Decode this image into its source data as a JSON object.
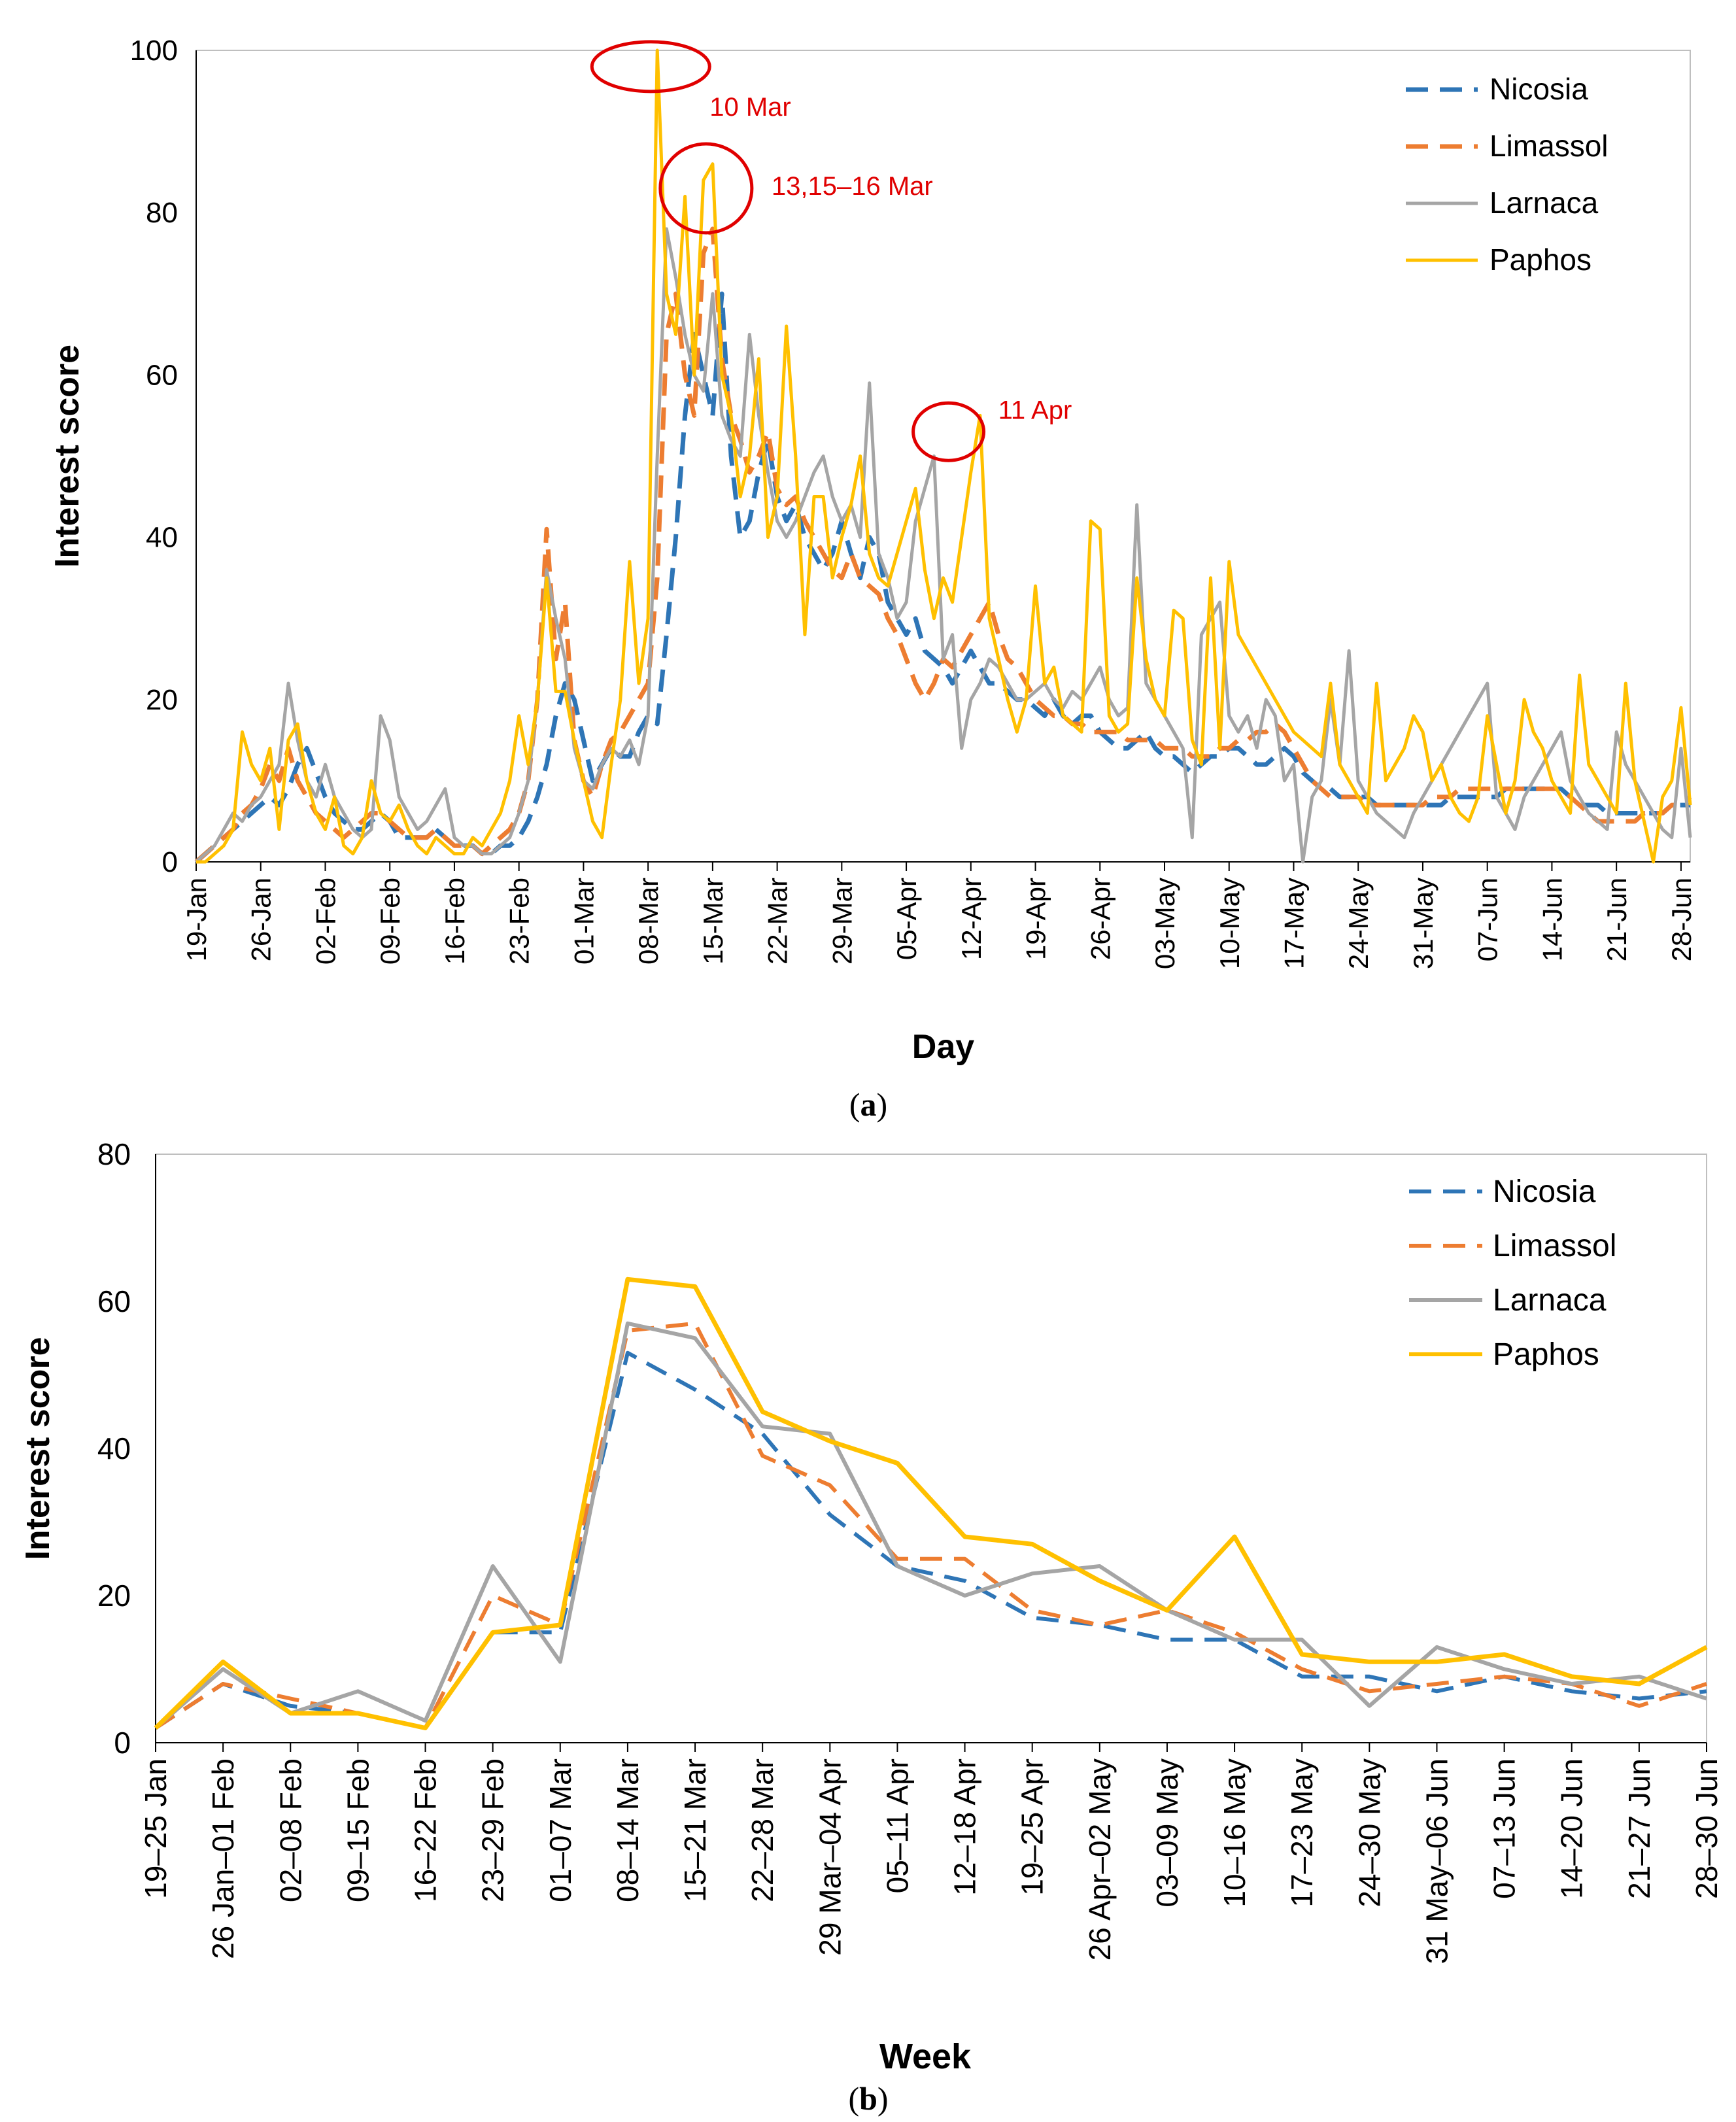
{
  "figure": {
    "caption_a_open": "(",
    "caption_a_letter": "a",
    "caption_a_close": ")",
    "caption_b_open": "(",
    "caption_b_letter": "b",
    "caption_b_close": ")"
  },
  "colors": {
    "Nicosia": "#2E75B6",
    "Limassol": "#ED7D31",
    "Larnaca": "#A5A5A5",
    "Paphos": "#FFC000",
    "annotation": "#E00000",
    "axis": "#000000",
    "gridbox": "#BFBFBF"
  },
  "chart_data": [
    {
      "type": "line",
      "title": "",
      "xlabel": "Day",
      "ylabel": "Interest score",
      "ylim": [
        0,
        100
      ],
      "yticks": [
        0,
        20,
        40,
        60,
        80,
        100
      ],
      "x_count": 163,
      "tick_every": 7,
      "tick_labels": [
        "19-Jan",
        "26-Jan",
        "02-Feb",
        "09-Feb",
        "16-Feb",
        "23-Feb",
        "01-Mar",
        "08-Mar",
        "15-Mar",
        "22-Mar",
        "29-Mar",
        "05-Apr",
        "12-Apr",
        "19-Apr",
        "26-Apr",
        "03-May",
        "10-May",
        "17-May",
        "24-May",
        "31-May",
        "07-Jun",
        "14-Jun",
        "21-Jun",
        "28-Jun"
      ],
      "legend": [
        "Nicosia",
        "Limassol",
        "Larnaca",
        "Paphos"
      ],
      "legend_position": "top-right",
      "annotations": [
        {
          "text": "10 Mar",
          "x_index": 50,
          "y": 98
        },
        {
          "text": "13,15–16 Mar",
          "x_index": 56,
          "y": 83
        },
        {
          "text": "11 Apr",
          "x_index": 82,
          "y": 53
        }
      ],
      "series": [
        {
          "name": "Nicosia",
          "style": "dashed",
          "values": [
            0,
            1,
            2,
            3,
            4,
            5,
            6,
            7,
            8,
            7,
            9,
            12,
            14,
            11,
            8,
            6,
            5,
            4,
            4,
            5,
            6,
            5,
            3,
            3,
            3,
            3,
            4,
            3,
            2,
            2,
            2,
            1,
            1,
            2,
            2,
            3,
            5,
            8,
            12,
            18,
            22,
            20,
            15,
            10,
            12,
            14,
            13,
            13,
            16,
            18,
            17,
            28,
            40,
            55,
            65,
            60,
            55,
            70,
            50,
            40,
            42,
            48,
            52,
            45,
            42,
            44,
            40,
            38,
            36,
            38,
            42,
            38,
            35,
            40,
            38,
            32,
            30,
            28,
            30,
            26,
            25,
            24,
            22,
            24,
            26,
            24,
            22,
            22,
            21,
            20,
            20,
            19,
            18,
            20,
            18,
            17,
            18,
            18,
            16,
            15,
            14,
            14,
            15,
            16,
            14,
            13,
            13,
            12,
            11,
            12,
            13,
            13,
            14,
            14,
            13,
            12,
            12,
            13,
            14,
            13,
            11,
            10,
            9,
            9,
            8,
            8,
            8,
            8,
            7,
            7,
            7,
            7,
            7,
            7,
            7,
            7,
            8,
            8,
            8,
            8,
            8,
            8,
            9,
            9,
            9,
            9,
            9,
            9,
            9,
            8,
            7,
            7,
            7,
            6,
            6,
            6,
            6,
            6,
            6,
            6,
            7,
            7,
            7
          ]
        },
        {
          "name": "Limassol",
          "style": "dashed",
          "values": [
            0,
            1,
            2,
            3,
            4,
            6,
            7,
            9,
            12,
            10,
            14,
            10,
            8,
            6,
            5,
            4,
            3,
            4,
            5,
            6,
            6,
            5,
            4,
            3,
            3,
            3,
            4,
            3,
            2,
            2,
            2,
            1,
            2,
            3,
            4,
            6,
            10,
            20,
            41,
            25,
            32,
            15,
            10,
            8,
            12,
            15,
            16,
            18,
            20,
            22,
            35,
            65,
            70,
            60,
            55,
            75,
            78,
            62,
            55,
            52,
            48,
            50,
            53,
            46,
            44,
            45,
            42,
            40,
            38,
            36,
            35,
            38,
            35,
            34,
            33,
            30,
            28,
            25,
            22,
            20,
            22,
            25,
            24,
            26,
            28,
            30,
            32,
            28,
            25,
            24,
            22,
            20,
            19,
            18,
            18,
            17,
            17,
            16,
            16,
            16,
            16,
            15,
            15,
            15,
            15,
            14,
            14,
            14,
            13,
            13,
            13,
            14,
            14,
            15,
            15,
            16,
            16,
            17,
            16,
            14,
            12,
            10,
            9,
            8,
            8,
            8,
            8,
            7,
            7,
            7,
            7,
            7,
            7,
            7,
            8,
            8,
            8,
            9,
            9,
            9,
            9,
            9,
            9,
            9,
            9,
            9,
            9,
            9,
            9,
            8,
            7,
            6,
            5,
            5,
            5,
            5,
            5,
            6,
            6,
            6,
            7,
            7,
            8
          ]
        },
        {
          "name": "Larnaca",
          "style": "solid",
          "values": [
            0,
            1,
            2,
            4,
            6,
            5,
            7,
            8,
            10,
            12,
            22,
            15,
            10,
            8,
            12,
            8,
            6,
            4,
            3,
            4,
            18,
            15,
            8,
            6,
            4,
            5,
            7,
            9,
            3,
            2,
            2,
            1,
            1,
            2,
            3,
            6,
            10,
            20,
            36,
            30,
            25,
            14,
            10,
            9,
            12,
            14,
            13,
            15,
            12,
            18,
            50,
            78,
            72,
            65,
            60,
            58,
            70,
            55,
            52,
            50,
            65,
            55,
            48,
            42,
            40,
            42,
            45,
            48,
            50,
            45,
            42,
            44,
            40,
            59,
            38,
            35,
            30,
            32,
            42,
            46,
            50,
            25,
            28,
            14,
            20,
            22,
            25,
            24,
            22,
            20,
            20,
            21,
            22,
            20,
            19,
            21,
            20,
            22,
            24,
            20,
            18,
            19,
            44,
            22,
            20,
            18,
            16,
            14,
            3,
            28,
            30,
            32,
            18,
            16,
            18,
            14,
            20,
            18,
            10,
            12,
            0,
            8,
            10,
            20,
            12,
            26,
            10,
            8,
            6,
            5,
            4,
            3,
            6,
            8,
            10,
            12,
            14,
            16,
            18,
            20,
            22,
            8,
            6,
            4,
            8,
            10,
            12,
            14,
            16,
            10,
            8,
            6,
            5,
            4,
            16,
            12,
            10,
            8,
            6,
            4,
            3,
            14,
            3
          ]
        },
        {
          "name": "Paphos",
          "style": "solid",
          "values": [
            0,
            0,
            1,
            2,
            4,
            16,
            12,
            10,
            14,
            4,
            15,
            17,
            10,
            6,
            4,
            8,
            2,
            1,
            3,
            10,
            6,
            5,
            7,
            4,
            2,
            1,
            3,
            2,
            1,
            1,
            3,
            2,
            4,
            6,
            10,
            18,
            12,
            20,
            35,
            21,
            21,
            15,
            10,
            5,
            3,
            12,
            20,
            37,
            22,
            30,
            100,
            70,
            65,
            82,
            60,
            84,
            86,
            60,
            55,
            45,
            50,
            62,
            40,
            45,
            66,
            50,
            28,
            45,
            45,
            35,
            40,
            44,
            50,
            38,
            35,
            34,
            38,
            42,
            46,
            36,
            30,
            35,
            32,
            40,
            48,
            55,
            30,
            25,
            20,
            16,
            20,
            34,
            22,
            24,
            18,
            17,
            16,
            42,
            41,
            18,
            16,
            17,
            35,
            25,
            20,
            18,
            31,
            30,
            15,
            12,
            35,
            14,
            37,
            28,
            26,
            24,
            22,
            20,
            18,
            16,
            15,
            14,
            13,
            22,
            12,
            10,
            8,
            6,
            22,
            10,
            12,
            14,
            18,
            16,
            10,
            12,
            8,
            6,
            5,
            8,
            18,
            12,
            6,
            10,
            20,
            16,
            14,
            10,
            8,
            6,
            23,
            12,
            10,
            8,
            6,
            22,
            10,
            5,
            0,
            8,
            10,
            19,
            7
          ]
        }
      ]
    },
    {
      "type": "line",
      "title": "",
      "xlabel": "Week",
      "ylabel": "Interest score",
      "ylim": [
        0,
        80
      ],
      "yticks": [
        0,
        20,
        40,
        60,
        80
      ],
      "categories": [
        "19–25 Jan",
        "26 Jan–01 Feb",
        "02–08 Feb",
        "09–15 Feb",
        "16–22 Feb",
        "23–29 Feb",
        "01–07 Mar",
        "08–14 Mar",
        "15–21 Mar",
        "22–28 Mar",
        "29 Mar–04 Apr",
        "05–11 Apr",
        "12–18 Apr",
        "19–25 Apr",
        "26 Apr–02 May",
        "03–09 May",
        "10–16 May",
        "17–23 May",
        "24–30 May",
        "31 May–06 Jun",
        "07–13 Jun",
        "14–20 Jun",
        "21–27 Jun",
        "28–30 Jun"
      ],
      "legend": [
        "Nicosia",
        "Limassol",
        "Larnaca",
        "Paphos"
      ],
      "legend_position": "top-right",
      "series": [
        {
          "name": "Nicosia",
          "style": "dashed",
          "values": [
            2,
            8,
            5,
            4,
            2,
            15,
            15,
            53,
            48,
            42,
            31,
            24,
            22,
            17,
            16,
            14,
            14,
            9,
            9,
            7,
            9,
            7,
            6,
            7
          ]
        },
        {
          "name": "Limassol",
          "style": "dashed",
          "values": [
            2,
            8,
            6,
            4,
            2,
            20,
            16,
            56,
            57,
            39,
            35,
            25,
            25,
            18,
            16,
            18,
            15,
            10,
            7,
            8,
            9,
            8,
            5,
            8
          ]
        },
        {
          "name": "Larnaca",
          "style": "solid",
          "values": [
            2,
            10,
            4,
            7,
            3,
            24,
            11,
            57,
            55,
            43,
            42,
            24,
            20,
            23,
            24,
            18,
            14,
            14,
            5,
            13,
            10,
            8,
            9,
            6
          ]
        },
        {
          "name": "Paphos",
          "style": "solid",
          "values": [
            2,
            11,
            4,
            4,
            2,
            15,
            16,
            63,
            62,
            45,
            41,
            38,
            28,
            27,
            22,
            18,
            28,
            12,
            11,
            11,
            12,
            9,
            8,
            13
          ]
        }
      ]
    }
  ]
}
